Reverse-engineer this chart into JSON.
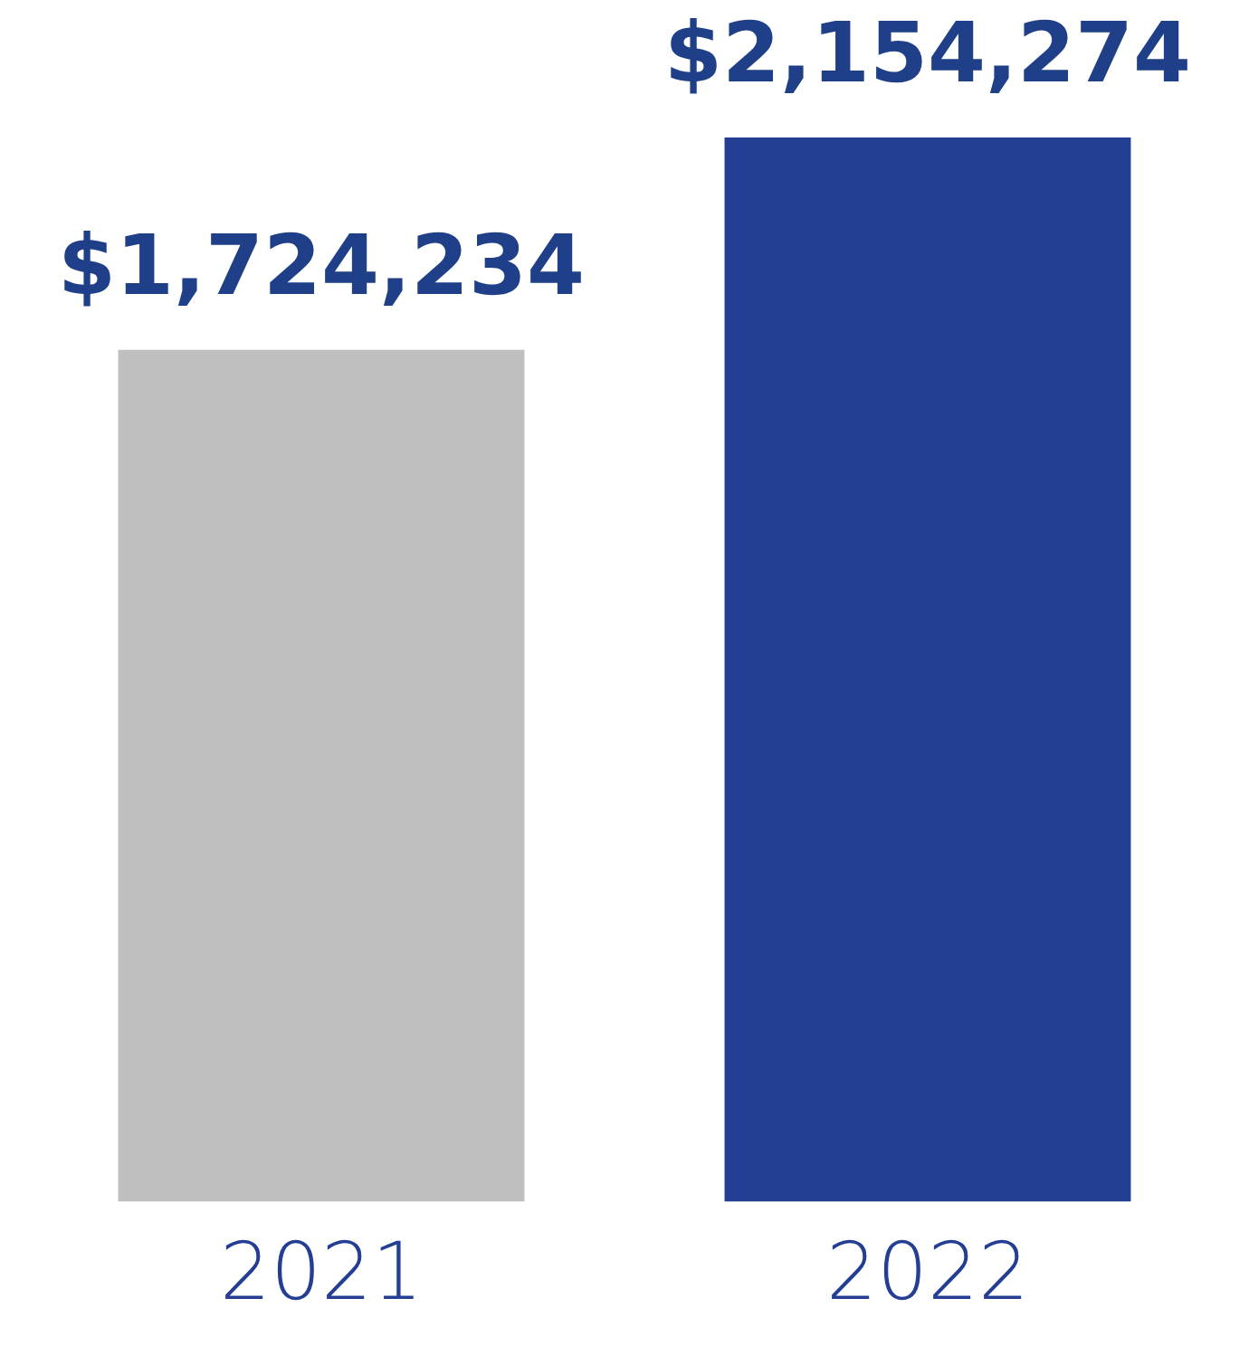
{
  "chart_data": {
    "type": "bar",
    "categories": [
      "2021",
      "2022"
    ],
    "values": [
      1724234,
      2154274
    ],
    "colors": [
      "#bfbfbf",
      "#233e92"
    ],
    "value_labels": [
      "$1,724,234",
      "$2,154,274"
    ],
    "grid": false,
    "legend": false
  }
}
